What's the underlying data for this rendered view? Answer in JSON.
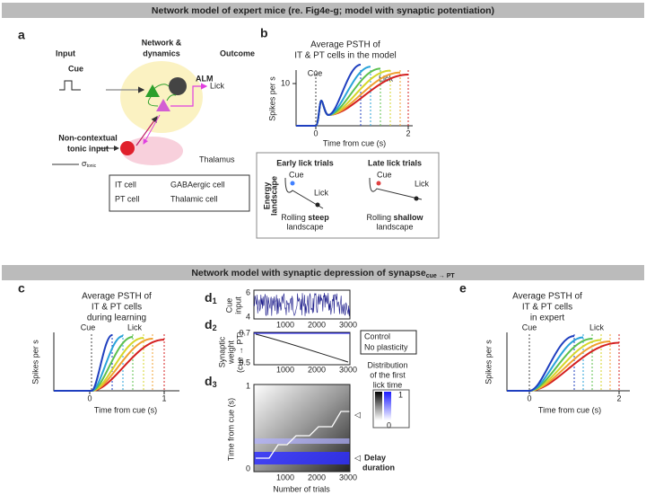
{
  "header_top": "Network model of expert mice (re. Fig4e-g; model with synaptic potentiation)",
  "header_bottom": {
    "text": "Network model with synaptic depression of synapse",
    "sub": "cue → PT"
  },
  "panel_a": {
    "label": "a",
    "input": "Input",
    "network": "Network &",
    "dynamics": "dynamics",
    "outcome": "Outcome",
    "cue": "Cue",
    "alm": "ALM",
    "lick": "Lick",
    "tonic_1": "Non-contextual",
    "tonic_2": "tonic input",
    "sigma": "σ",
    "sigma_sub": "tonic",
    "thalamus": "Thalamus",
    "legend": [
      "IT cell",
      "GABAergic cell",
      "PT cell",
      "Thalamic cell"
    ]
  },
  "panel_b": {
    "label": "b",
    "title_1": "Average PSTH of",
    "title_2": "IT & PT cells in the model",
    "ylabel": "Spikes per s",
    "xlabel": "Time from cue (s)",
    "cue": "Cue",
    "lick": "Lick",
    "yticks": [
      10
    ],
    "xticks": [
      0,
      2
    ],
    "inset": {
      "energy_1": "Energy",
      "energy_2": "landscape",
      "early": "Early lick trials",
      "late": "Late lick trials",
      "cue_1": "Cue",
      "lick_1": "Lick",
      "cue_2": "Cue",
      "lick_2": "Lick",
      "rolling_1": "Rolling",
      "steep": "steep",
      "landscape_1": "landscape",
      "rolling_2": "Rolling",
      "shallow": "shallow",
      "landscape_2": "landscape"
    }
  },
  "panel_c": {
    "label": "c",
    "title_1": "Average PSTH of",
    "title_2": "IT & PT cells",
    "title_3": "during learning",
    "ylabel": "Spikes per s",
    "xlabel": "Time from cue (s)",
    "cue": "Cue",
    "lick": "Lick",
    "xticks": [
      0,
      1
    ]
  },
  "panel_d": {
    "d1": {
      "label": "d",
      "sub": "1",
      "ylabel_1": "Cue",
      "ylabel_2": "input",
      "yticks": [
        6,
        4
      ],
      "xticks": [
        1000,
        2000,
        3000
      ]
    },
    "d2": {
      "label": "d",
      "sub": "2",
      "ylabel_1": "Synaptic",
      "ylabel_2": "weight",
      "ylabel_3": "(cue → PT)",
      "yticks": [
        0.7,
        0.5
      ],
      "xticks": [
        1000,
        2000,
        3000
      ]
    },
    "d3": {
      "label": "d",
      "sub": "3",
      "ylabel": "Time from cue (s)",
      "xlabel": "Number of trials",
      "yticks": [
        1,
        0
      ],
      "xticks": [
        1000,
        2000,
        3000
      ]
    },
    "legend": {
      "control": "Control",
      "no_plasticity": "No plasticity",
      "dist_1": "Distribution",
      "dist_2": "of the first",
      "dist_3": "lick time",
      "cbar_max": 1,
      "cbar_min": 0,
      "delay_1": "Delay",
      "delay_2": "duration"
    }
  },
  "panel_e": {
    "label": "e",
    "title_1": "Average PSTH of",
    "title_2": "IT & PT cells",
    "title_3": "in expert",
    "ylabel": "Spikes per s",
    "xlabel": "Time from cue (s)",
    "cue": "Cue",
    "lick": "Lick",
    "xticks": [
      0,
      2
    ]
  }
}
